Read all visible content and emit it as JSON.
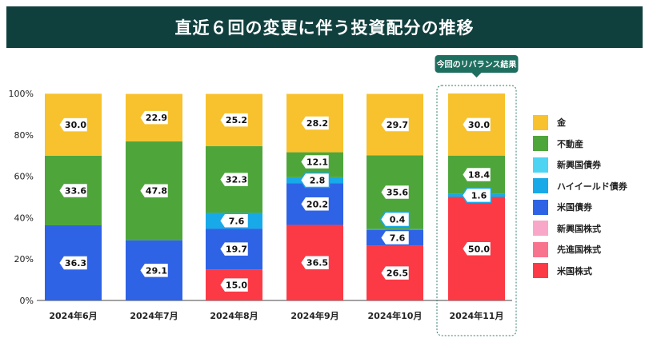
{
  "title": "直近６回の変更に伴う投資配分の推移",
  "callout": "今回のリバランス結果",
  "chart_data": {
    "type": "bar",
    "stacked": true,
    "categories": [
      "2024年6月",
      "2024年7月",
      "2024年8月",
      "2024年9月",
      "2024年10月",
      "2024年11月"
    ],
    "ylim": [
      0,
      100
    ],
    "yticks": [
      "0%",
      "20%",
      "40%",
      "60%",
      "80%",
      "100%"
    ],
    "grid": false,
    "legend_position": "right",
    "series": [
      {
        "name": "米国株式",
        "color": "#fc3a46",
        "values": [
          0,
          0,
          15.0,
          36.5,
          26.5,
          50.0
        ]
      },
      {
        "name": "先進国株式",
        "color": "#f8738e",
        "values": [
          0,
          0,
          0,
          0,
          0,
          0
        ]
      },
      {
        "name": "新興国株式",
        "color": "#f9a7c8",
        "values": [
          0,
          0,
          0,
          0,
          0,
          0
        ]
      },
      {
        "name": "米国債券",
        "color": "#2f63e6",
        "values": [
          36.3,
          29.1,
          19.7,
          20.2,
          7.6,
          0
        ]
      },
      {
        "name": "ハイイールド債券",
        "color": "#17a9e8",
        "values": [
          0,
          0,
          7.6,
          2.8,
          0.4,
          1.6
        ]
      },
      {
        "name": "新興国債券",
        "color": "#4dd4f2",
        "values": [
          0,
          0,
          0,
          0,
          0,
          0
        ]
      },
      {
        "name": "不動産",
        "color": "#4ea63b",
        "values": [
          33.6,
          47.8,
          32.3,
          12.1,
          35.6,
          18.4
        ]
      },
      {
        "name": "金",
        "color": "#f7c22d",
        "values": [
          30.0,
          22.9,
          25.2,
          28.2,
          29.7,
          30.0
        ]
      }
    ]
  },
  "legend_order": [
    "金",
    "不動産",
    "新興国債券",
    "ハイイールド債券",
    "米国債券",
    "新興国株式",
    "先進国株式",
    "米国株式"
  ]
}
